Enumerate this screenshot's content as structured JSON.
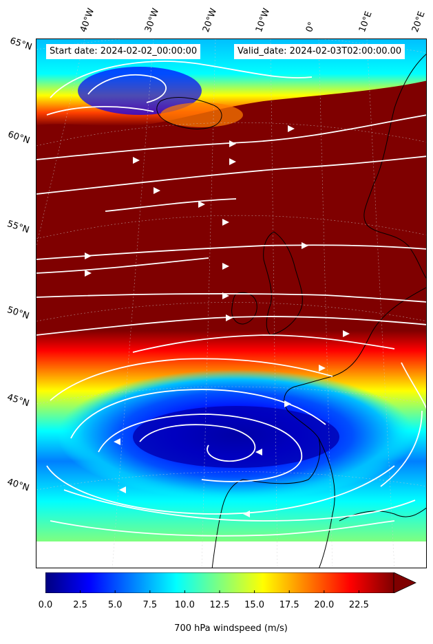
{
  "header": {
    "start_date": "Start date: 2024-02-02_00:00:00",
    "valid_date": "Valid_date: 2024-02-03T02:00:00.00"
  },
  "map": {
    "latitude_labels": [
      "65°N",
      "60°N",
      "55°N",
      "50°N",
      "45°N",
      "40°N"
    ],
    "longitude_labels": [
      "40°W",
      "30°W",
      "20°W",
      "10°W",
      "0°",
      "10°E",
      "20°E"
    ],
    "field": "700 hPa windspeed",
    "overlay": "streamlines",
    "colormap": "jet",
    "regions": [
      {
        "name": "northern-jet",
        "speed_band": "very high"
      },
      {
        "name": "central-jet-core",
        "speed_band": "above 22.5"
      },
      {
        "name": "southern-low",
        "speed_band": "below 5"
      }
    ]
  },
  "colorbar": {
    "min": 0,
    "max": 25,
    "extend": "max",
    "tick_labels": [
      "0.0",
      "2.5",
      "5.0",
      "7.5",
      "10.0",
      "12.5",
      "15.0",
      "17.5",
      "20.0",
      "22.5"
    ],
    "tick_values": [
      0,
      2.5,
      5,
      7.5,
      10,
      12.5,
      15,
      17.5,
      20,
      22.5
    ],
    "label": "700 hPa windspeed (m/s)",
    "colors": [
      "#00007f",
      "#0000ff",
      "#007fff",
      "#00ffff",
      "#7fff7f",
      "#ffff00",
      "#ff7f00",
      "#ff0000",
      "#7f0000"
    ]
  },
  "colors": {
    "streamline": "#ffffff",
    "coastline": "#000000",
    "background": "#ffffff"
  }
}
